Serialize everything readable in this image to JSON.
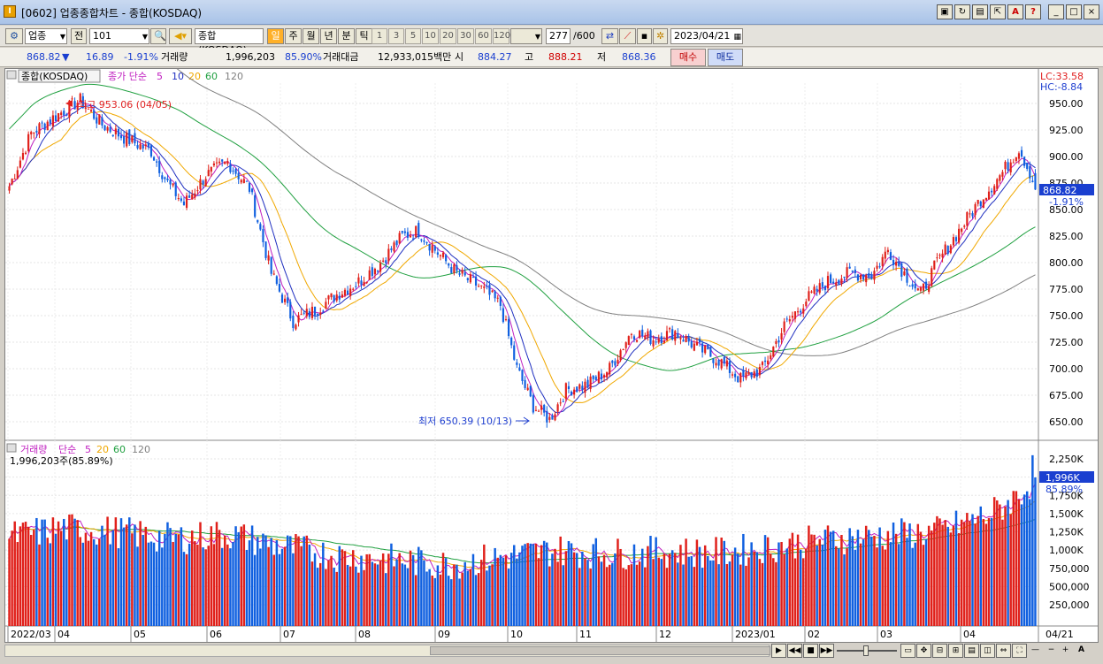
{
  "window": {
    "title": "[0602] 업종종합차트 - 종합(KOSDAQ)",
    "icon": "I"
  },
  "title_buttons": [
    "▣",
    "↻",
    "▤",
    "⇱",
    "A",
    "?",
    "_",
    "□",
    "×"
  ],
  "toolbar": {
    "market": "업종",
    "jeon": "전",
    "code": "101",
    "name": "종합(KOSDAQ)",
    "periods": [
      "일",
      "주",
      "월",
      "년",
      "분",
      "틱"
    ],
    "active_period": "일",
    "nums": [
      "1",
      "3",
      "5",
      "10",
      "20",
      "30",
      "60",
      "120"
    ],
    "count": "277",
    "count_max": "/600",
    "date": "2023/04/21"
  },
  "quote": {
    "price": "868.82",
    "arrow": "▼",
    "change": "16.89",
    "rate": "-1.91%",
    "vol_label": "거래량",
    "volume": "1,996,203",
    "vol_ratio": "85.90%",
    "amt_label": "거래대금",
    "amount": "12,933,015백만",
    "open_label": "시",
    "open": "884.27",
    "high_label": "고",
    "high": "888.21",
    "low_label": "저",
    "low": "868.36",
    "buy": "매수",
    "sell": "매도"
  },
  "price_panel": {
    "title": "종합(KOSDAQ)",
    "ma_label": "종가 단순",
    "ma_periods": [
      "5",
      "10",
      "20",
      "60",
      "120"
    ],
    "lc": "LC:33.58",
    "hc": "HC:-8.84",
    "max_label": "최고 953.06 (04/05)",
    "min_label": "최저 650.39 (10/13)",
    "last_price": "868.82",
    "last_change": "-1.91%",
    "y_ticks": [
      "950.00",
      "925.00",
      "900.00",
      "875.00",
      "850.00",
      "825.00",
      "800.00",
      "775.00",
      "750.00",
      "725.00",
      "700.00",
      "675.00",
      "650.00"
    ]
  },
  "volume_panel": {
    "title": "거래량",
    "ma_label": "단순",
    "ma_periods": [
      "5",
      "20",
      "60",
      "120"
    ],
    "current": "1,996,203주(85.89%)",
    "last_label": "1,996K",
    "last_pct": "85.89%",
    "y_ticks": [
      "2,250K",
      "2,000K",
      "1,750K",
      "1,500K",
      "1,250K",
      "1,000K",
      "750,000",
      "500,000",
      "250,000"
    ]
  },
  "x_axis": [
    "2022/03",
    "04",
    "05",
    "06",
    "07",
    "08",
    "09",
    "10",
    "11",
    "12",
    "2023/01",
    "02",
    "03",
    "04"
  ],
  "x_right": "04/21",
  "colors": {
    "up": "#e0201a",
    "down": "#1060e0",
    "ma5": "#c020c0",
    "ma10": "#2030c0",
    "ma20": "#f0a800",
    "ma60": "#20a040",
    "ma120": "#808080"
  },
  "chart_data": {
    "type": "candlestick",
    "trend": [
      {
        "i": 0,
        "p": 872
      },
      {
        "i": 8,
        "p": 922
      },
      {
        "i": 18,
        "p": 940
      },
      {
        "i": 26,
        "p": 953
      },
      {
        "i": 34,
        "p": 930
      },
      {
        "i": 42,
        "p": 918
      },
      {
        "i": 52,
        "p": 905
      },
      {
        "i": 58,
        "p": 875
      },
      {
        "i": 64,
        "p": 855
      },
      {
        "i": 72,
        "p": 882
      },
      {
        "i": 80,
        "p": 895
      },
      {
        "i": 88,
        "p": 870
      },
      {
        "i": 96,
        "p": 790
      },
      {
        "i": 104,
        "p": 745
      },
      {
        "i": 112,
        "p": 755
      },
      {
        "i": 120,
        "p": 770
      },
      {
        "i": 128,
        "p": 782
      },
      {
        "i": 136,
        "p": 800
      },
      {
        "i": 144,
        "p": 825
      },
      {
        "i": 150,
        "p": 830
      },
      {
        "i": 156,
        "p": 812
      },
      {
        "i": 164,
        "p": 790
      },
      {
        "i": 172,
        "p": 778
      },
      {
        "i": 180,
        "p": 760
      },
      {
        "i": 186,
        "p": 700
      },
      {
        "i": 192,
        "p": 665
      },
      {
        "i": 198,
        "p": 652
      },
      {
        "i": 204,
        "p": 680
      },
      {
        "i": 212,
        "p": 685
      },
      {
        "i": 220,
        "p": 700
      },
      {
        "i": 228,
        "p": 735
      },
      {
        "i": 236,
        "p": 728
      },
      {
        "i": 244,
        "p": 735
      },
      {
        "i": 252,
        "p": 720
      },
      {
        "i": 260,
        "p": 708
      },
      {
        "i": 268,
        "p": 690
      },
      {
        "i": 276,
        "p": 700
      },
      {
        "i": 284,
        "p": 740
      },
      {
        "i": 292,
        "p": 765
      },
      {
        "i": 300,
        "p": 782
      },
      {
        "i": 308,
        "p": 790
      },
      {
        "i": 316,
        "p": 788
      },
      {
        "i": 322,
        "p": 812
      },
      {
        "i": 328,
        "p": 790
      },
      {
        "i": 334,
        "p": 770
      },
      {
        "i": 340,
        "p": 800
      },
      {
        "i": 348,
        "p": 830
      },
      {
        "i": 356,
        "p": 860
      },
      {
        "i": 364,
        "p": 885
      },
      {
        "i": 370,
        "p": 908
      },
      {
        "i": 374,
        "p": 885
      },
      {
        "i": 376,
        "p": 869
      }
    ],
    "volume_trend": [
      {
        "i": 0,
        "v": 1180
      },
      {
        "i": 20,
        "v": 1300
      },
      {
        "i": 40,
        "v": 1250
      },
      {
        "i": 60,
        "v": 1150
      },
      {
        "i": 80,
        "v": 1220
      },
      {
        "i": 100,
        "v": 1050
      },
      {
        "i": 120,
        "v": 920
      },
      {
        "i": 140,
        "v": 870
      },
      {
        "i": 160,
        "v": 800
      },
      {
        "i": 180,
        "v": 900
      },
      {
        "i": 200,
        "v": 1000
      },
      {
        "i": 220,
        "v": 950
      },
      {
        "i": 240,
        "v": 980
      },
      {
        "i": 260,
        "v": 960
      },
      {
        "i": 280,
        "v": 1050
      },
      {
        "i": 300,
        "v": 1150
      },
      {
        "i": 320,
        "v": 1200
      },
      {
        "i": 340,
        "v": 1250
      },
      {
        "i": 360,
        "v": 1500
      },
      {
        "i": 370,
        "v": 1750
      },
      {
        "i": 376,
        "v": 1996
      }
    ]
  }
}
